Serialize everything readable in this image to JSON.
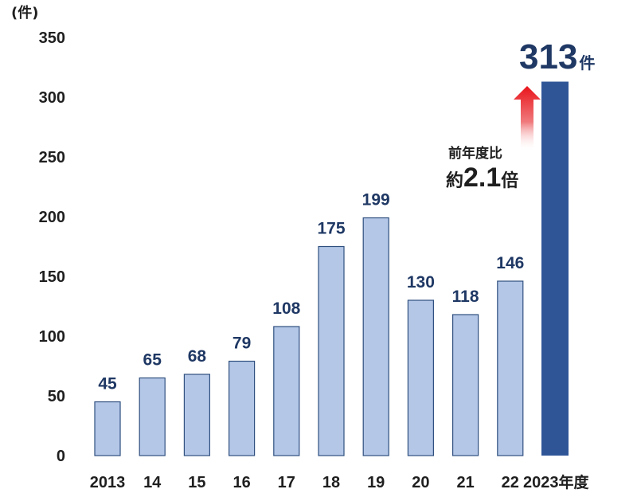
{
  "chart_data": {
    "type": "bar",
    "y_unit_label": "(件)",
    "x_unit_suffix": "年度",
    "categories": [
      "2013",
      "14",
      "15",
      "16",
      "17",
      "18",
      "19",
      "20",
      "21",
      "22",
      "2023"
    ],
    "values": [
      45,
      65,
      68,
      79,
      108,
      175,
      199,
      130,
      118,
      146,
      313
    ],
    "ylim": [
      0,
      350
    ],
    "yticks": [
      0,
      50,
      100,
      150,
      200,
      250,
      300,
      350
    ],
    "grid": false,
    "legend": "none",
    "colors": {
      "bar": "#b4c7e7",
      "bar_stroke": "#2f4f7f",
      "highlight_bar": "#2f5597",
      "label": "#1f3864",
      "arrow_top": "#e8151b"
    },
    "highlight": {
      "value_text": "313",
      "unit": "件"
    },
    "annotation": {
      "line1": "前年度比",
      "prefix": "約",
      "number": "2.1",
      "suffix": "倍"
    }
  }
}
